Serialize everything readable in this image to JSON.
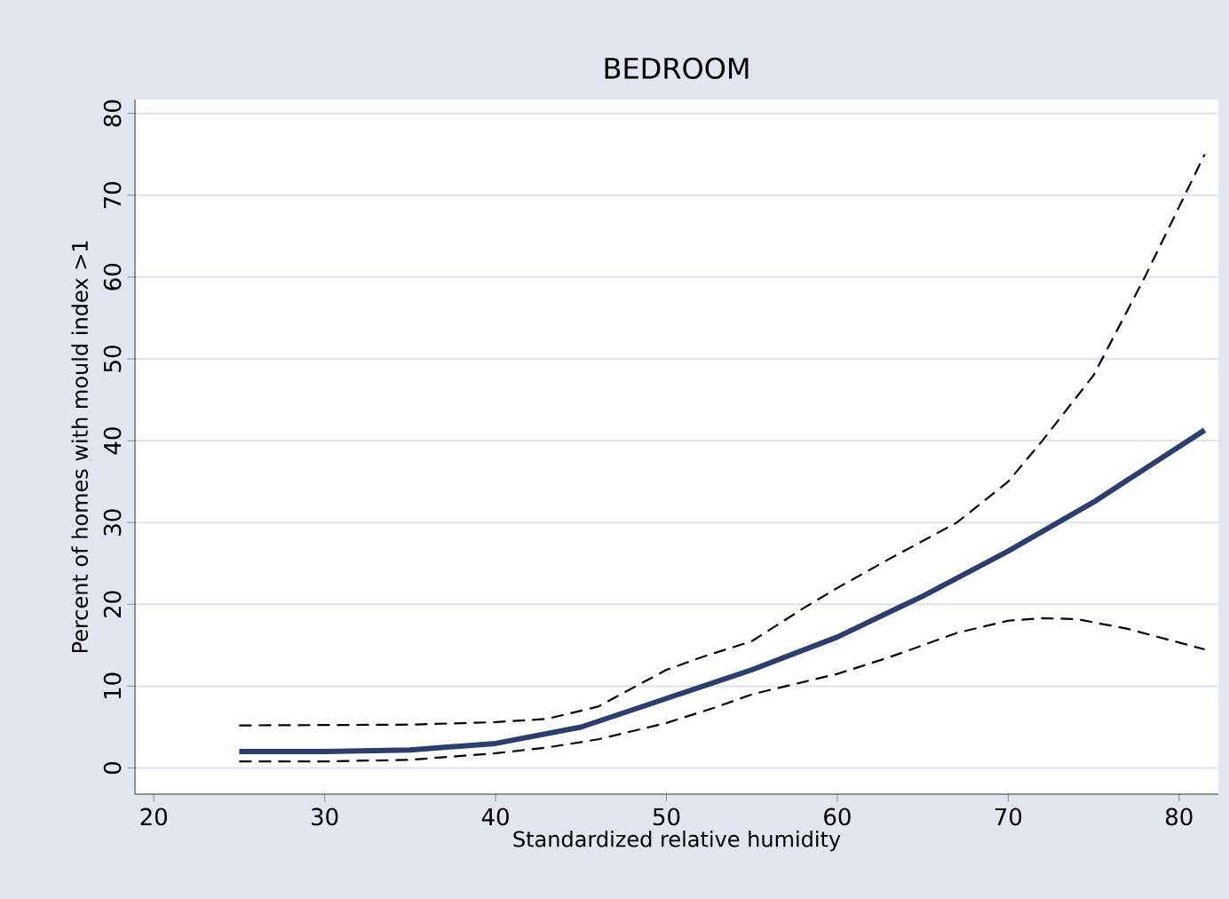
{
  "chart_data": {
    "type": "line",
    "title": "BEDROOM",
    "xlabel": "Standardized relative humidity",
    "ylabel": "Percent of homes with mould index >1",
    "xlim": [
      18.9,
      82.3
    ],
    "ylim": [
      -3.2,
      81.7
    ],
    "xticks": [
      20,
      30,
      40,
      50,
      60,
      70,
      80
    ],
    "yticks": [
      0,
      10,
      20,
      30,
      40,
      50,
      60,
      70,
      80
    ],
    "grid": "y",
    "marker": "none",
    "series": [
      {
        "color": "#2c3e6e",
        "line_style": "solid",
        "x": [
          25,
          30,
          35,
          40,
          45,
          50,
          55,
          60,
          65,
          70,
          75,
          81.5
        ],
        "values": [
          2,
          2,
          2.2,
          3,
          5,
          8.5,
          12,
          16,
          21,
          26.5,
          32.5,
          41.3
        ]
      },
      {
        "color": "#000000",
        "line_style": "dashed",
        "x": [
          25,
          35,
          40,
          43,
          46,
          50,
          52,
          55,
          58,
          60,
          63,
          67,
          70,
          72,
          75,
          78,
          81.5
        ],
        "values": [
          5.2,
          5.3,
          5.6,
          6,
          7.5,
          12,
          13.5,
          15.5,
          19.5,
          22,
          25.5,
          30,
          35,
          40,
          48,
          60,
          75
        ]
      },
      {
        "color": "#000000",
        "line_style": "dashed",
        "x": [
          25,
          30,
          35,
          40,
          43,
          46,
          50,
          53,
          55,
          58,
          60,
          63,
          67,
          70,
          72,
          74,
          77,
          81.5
        ],
        "values": [
          0.8,
          0.8,
          1,
          1.8,
          2.5,
          3.5,
          5.5,
          7.5,
          9,
          10.5,
          11.5,
          13.5,
          16.5,
          18,
          18.3,
          18.2,
          17,
          14.5
        ]
      }
    ]
  }
}
